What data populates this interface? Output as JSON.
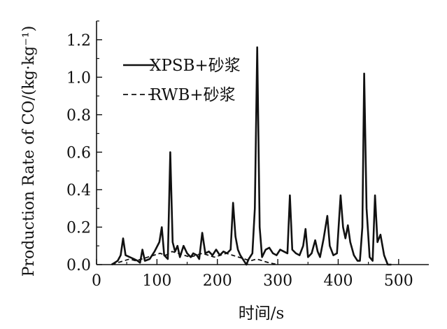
{
  "chart_data": {
    "type": "line",
    "title": "",
    "xlabel": "时间/s",
    "ylabel": "Production Rate of CO/(kg·kg⁻¹)",
    "xlim": [
      0,
      550
    ],
    "ylim": [
      0,
      1.3
    ],
    "x_ticks": [
      0,
      100,
      200,
      300,
      400,
      500
    ],
    "x_tick_labels": [
      "0",
      "100",
      "200",
      "300",
      "400",
      "500"
    ],
    "y_ticks": [
      0,
      0.2,
      0.4,
      0.6,
      0.8,
      1.0,
      1.2
    ],
    "y_tick_labels": [
      "0.0",
      "0.2",
      "0.4",
      "0.6",
      "0.8",
      "1.0",
      "1.2"
    ],
    "grid": false,
    "legend": {
      "position": "top-left"
    },
    "series": [
      {
        "name": "XPSB+砂浆",
        "style": "solid",
        "color": "#111111",
        "points": [
          [
            25,
            0.0
          ],
          [
            30,
            0.01
          ],
          [
            35,
            0.02
          ],
          [
            40,
            0.05
          ],
          [
            44,
            0.14
          ],
          [
            48,
            0.05
          ],
          [
            55,
            0.04
          ],
          [
            62,
            0.03
          ],
          [
            68,
            0.02
          ],
          [
            72,
            0.01
          ],
          [
            76,
            0.08
          ],
          [
            80,
            0.02
          ],
          [
            88,
            0.03
          ],
          [
            96,
            0.07
          ],
          [
            104,
            0.12
          ],
          [
            108,
            0.2
          ],
          [
            112,
            0.05
          ],
          [
            118,
            0.03
          ],
          [
            122,
            0.6
          ],
          [
            126,
            0.12
          ],
          [
            130,
            0.07
          ],
          [
            134,
            0.1
          ],
          [
            138,
            0.04
          ],
          [
            144,
            0.1
          ],
          [
            150,
            0.06
          ],
          [
            156,
            0.04
          ],
          [
            160,
            0.06
          ],
          [
            166,
            0.05
          ],
          [
            170,
            0.03
          ],
          [
            175,
            0.17
          ],
          [
            180,
            0.06
          ],
          [
            186,
            0.07
          ],
          [
            192,
            0.05
          ],
          [
            198,
            0.08
          ],
          [
            204,
            0.05
          ],
          [
            210,
            0.07
          ],
          [
            216,
            0.06
          ],
          [
            222,
            0.08
          ],
          [
            226,
            0.33
          ],
          [
            230,
            0.15
          ],
          [
            234,
            0.08
          ],
          [
            238,
            0.05
          ],
          [
            244,
            0.02
          ],
          [
            248,
            0.0
          ],
          [
            252,
            0.03
          ],
          [
            258,
            0.06
          ],
          [
            262,
            0.3
          ],
          [
            266,
            1.16
          ],
          [
            270,
            0.2
          ],
          [
            274,
            0.04
          ],
          [
            280,
            0.08
          ],
          [
            286,
            0.09
          ],
          [
            292,
            0.06
          ],
          [
            298,
            0.05
          ],
          [
            304,
            0.08
          ],
          [
            310,
            0.07
          ],
          [
            316,
            0.06
          ],
          [
            320,
            0.37
          ],
          [
            324,
            0.08
          ],
          [
            330,
            0.06
          ],
          [
            336,
            0.05
          ],
          [
            342,
            0.1
          ],
          [
            346,
            0.19
          ],
          [
            350,
            0.04
          ],
          [
            356,
            0.06
          ],
          [
            362,
            0.13
          ],
          [
            366,
            0.07
          ],
          [
            370,
            0.04
          ],
          [
            376,
            0.14
          ],
          [
            382,
            0.26
          ],
          [
            386,
            0.1
          ],
          [
            392,
            0.05
          ],
          [
            398,
            0.06
          ],
          [
            404,
            0.37
          ],
          [
            408,
            0.2
          ],
          [
            412,
            0.14
          ],
          [
            416,
            0.21
          ],
          [
            420,
            0.12
          ],
          [
            426,
            0.05
          ],
          [
            432,
            0.02
          ],
          [
            436,
            0.02
          ],
          [
            440,
            0.2
          ],
          [
            443,
            1.02
          ],
          [
            447,
            0.3
          ],
          [
            452,
            0.04
          ],
          [
            457,
            0.02
          ],
          [
            461,
            0.37
          ],
          [
            465,
            0.12
          ],
          [
            470,
            0.16
          ],
          [
            476,
            0.05
          ],
          [
            482,
            0.0
          ],
          [
            488,
            0.0
          ]
        ]
      },
      {
        "name": "RWB+砂浆",
        "style": "dashed",
        "color": "#111111",
        "points": [
          [
            25,
            0.0
          ],
          [
            35,
            0.01
          ],
          [
            45,
            0.02
          ],
          [
            55,
            0.03
          ],
          [
            65,
            0.02
          ],
          [
            75,
            0.03
          ],
          [
            85,
            0.04
          ],
          [
            95,
            0.05
          ],
          [
            105,
            0.06
          ],
          [
            115,
            0.05
          ],
          [
            125,
            0.07
          ],
          [
            135,
            0.06
          ],
          [
            145,
            0.05
          ],
          [
            155,
            0.04
          ],
          [
            165,
            0.05
          ],
          [
            175,
            0.06
          ],
          [
            185,
            0.05
          ],
          [
            195,
            0.04
          ],
          [
            205,
            0.05
          ],
          [
            215,
            0.06
          ],
          [
            225,
            0.05
          ],
          [
            235,
            0.04
          ],
          [
            245,
            0.03
          ],
          [
            255,
            0.02
          ],
          [
            265,
            0.03
          ],
          [
            275,
            0.02
          ],
          [
            285,
            0.01
          ],
          [
            300,
            0.0
          ]
        ]
      }
    ]
  }
}
